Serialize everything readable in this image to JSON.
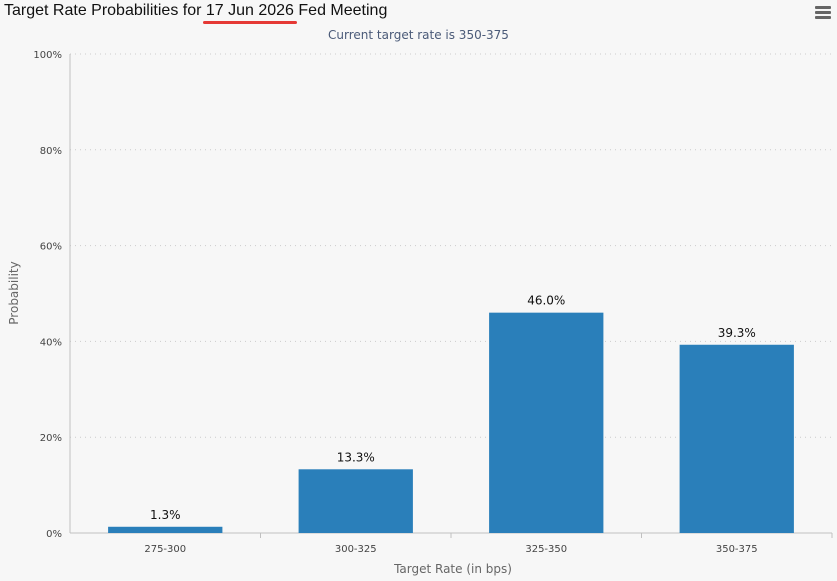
{
  "header": {
    "title_prefix": "Target Rate Probabilities for ",
    "title_date": "17 Jun 2026",
    "title_suffix": " Fed Meeting",
    "subtitle": "Current target rate is 350-375"
  },
  "colors": {
    "bar": "#2a7fba",
    "grid": "#cccccc",
    "highlight": "#e53935"
  },
  "icons": {
    "menu": "hamburger-menu-icon"
  },
  "chart_data": {
    "type": "bar",
    "categories": [
      "275-300",
      "300-325",
      "325-350",
      "350-375"
    ],
    "values": [
      1.3,
      13.3,
      46.0,
      39.3
    ],
    "value_labels": [
      "1.3%",
      "13.3%",
      "46.0%",
      "39.3%"
    ],
    "xlabel": "Target Rate (in bps)",
    "ylabel": "Probability",
    "ylim": [
      0,
      100
    ],
    "yticks": [
      0,
      20,
      40,
      60,
      80,
      100
    ],
    "ytick_labels": [
      "0%",
      "20%",
      "40%",
      "60%",
      "80%",
      "100%"
    ],
    "grid": true
  }
}
